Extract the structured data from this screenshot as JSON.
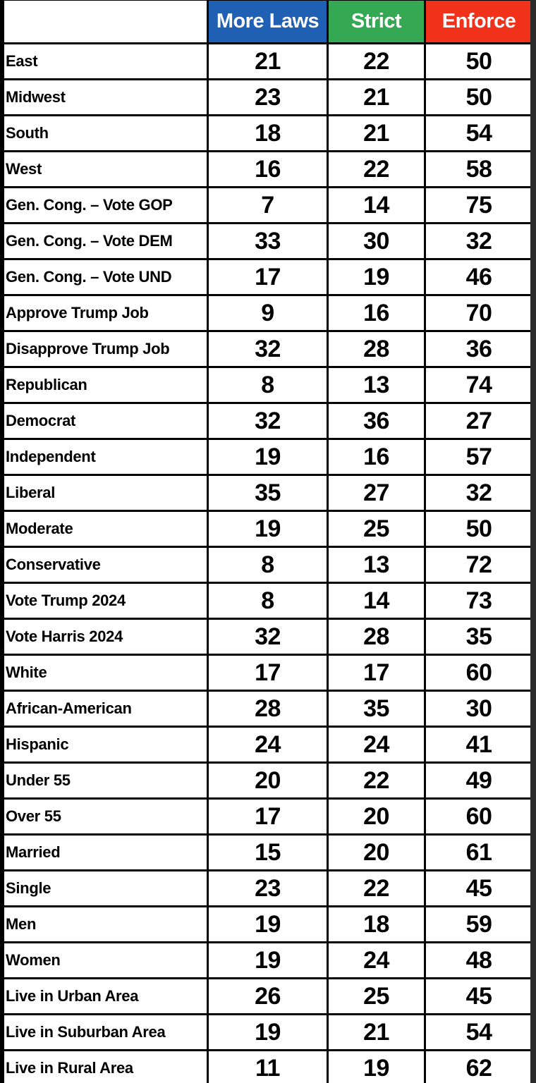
{
  "table": {
    "columns": [
      {
        "key": "label",
        "label": ""
      },
      {
        "key": "more_laws",
        "label": "More Laws",
        "color": "#1f5fb4"
      },
      {
        "key": "strict",
        "label": "Strict",
        "color": "#34a853"
      },
      {
        "key": "enforce",
        "label": "Enforce",
        "color": "#f2311a"
      }
    ],
    "rows": [
      {
        "label": "East",
        "more_laws": "21",
        "strict": "22",
        "enforce": "50"
      },
      {
        "label": "Midwest",
        "more_laws": "23",
        "strict": "21",
        "enforce": "50"
      },
      {
        "label": "South",
        "more_laws": "18",
        "strict": "21",
        "enforce": "54"
      },
      {
        "label": "West",
        "more_laws": "16",
        "strict": "22",
        "enforce": "58"
      },
      {
        "label": "Gen. Cong. – Vote GOP",
        "more_laws": "7",
        "strict": "14",
        "enforce": "75"
      },
      {
        "label": "Gen. Cong. – Vote DEM",
        "more_laws": "33",
        "strict": "30",
        "enforce": "32"
      },
      {
        "label": "Gen. Cong. – Vote UND",
        "more_laws": "17",
        "strict": "19",
        "enforce": "46"
      },
      {
        "label": "Approve Trump Job",
        "more_laws": "9",
        "strict": "16",
        "enforce": "70"
      },
      {
        "label": "Disapprove Trump Job",
        "more_laws": "32",
        "strict": "28",
        "enforce": "36"
      },
      {
        "label": "Republican",
        "more_laws": "8",
        "strict": "13",
        "enforce": "74"
      },
      {
        "label": "Democrat",
        "more_laws": "32",
        "strict": "36",
        "enforce": "27"
      },
      {
        "label": "Independent",
        "more_laws": "19",
        "strict": "16",
        "enforce": "57"
      },
      {
        "label": "Liberal",
        "more_laws": "35",
        "strict": "27",
        "enforce": "32"
      },
      {
        "label": "Moderate",
        "more_laws": "19",
        "strict": "25",
        "enforce": "50"
      },
      {
        "label": "Conservative",
        "more_laws": "8",
        "strict": "13",
        "enforce": "72"
      },
      {
        "label": "Vote Trump 2024",
        "more_laws": "8",
        "strict": "14",
        "enforce": "73"
      },
      {
        "label": "Vote Harris 2024",
        "more_laws": "32",
        "strict": "28",
        "enforce": "35"
      },
      {
        "label": "White",
        "more_laws": "17",
        "strict": "17",
        "enforce": "60"
      },
      {
        "label": "African-American",
        "more_laws": "28",
        "strict": "35",
        "enforce": "30"
      },
      {
        "label": "Hispanic",
        "more_laws": "24",
        "strict": "24",
        "enforce": "41"
      },
      {
        "label": "Under 55",
        "more_laws": "20",
        "strict": "22",
        "enforce": "49"
      },
      {
        "label": "Over 55",
        "more_laws": "17",
        "strict": "20",
        "enforce": "60"
      },
      {
        "label": "Married",
        "more_laws": "15",
        "strict": "20",
        "enforce": "61"
      },
      {
        "label": "Single",
        "more_laws": "23",
        "strict": "22",
        "enforce": "45"
      },
      {
        "label": "Men",
        "more_laws": "19",
        "strict": "18",
        "enforce": "59"
      },
      {
        "label": "Women",
        "more_laws": "19",
        "strict": "24",
        "enforce": "48"
      },
      {
        "label": "Live in Urban Area",
        "more_laws": "26",
        "strict": "25",
        "enforce": "45"
      },
      {
        "label": "Live in Suburban Area",
        "more_laws": "19",
        "strict": "21",
        "enforce": "54"
      },
      {
        "label": "Live in Rural Area",
        "more_laws": "11",
        "strict": "19",
        "enforce": "62"
      }
    ]
  },
  "chart_data": {
    "type": "table",
    "title": "",
    "columns": [
      "More Laws",
      "Strict",
      "Enforce"
    ],
    "column_colors": [
      "#1f5fb4",
      "#34a853",
      "#f2311a"
    ],
    "categories": [
      "East",
      "Midwest",
      "South",
      "West",
      "Gen. Cong. – Vote GOP",
      "Gen. Cong. – Vote DEM",
      "Gen. Cong. – Vote UND",
      "Approve Trump Job",
      "Disapprove Trump Job",
      "Republican",
      "Democrat",
      "Independent",
      "Liberal",
      "Moderate",
      "Conservative",
      "Vote Trump 2024",
      "Vote Harris 2024",
      "White",
      "African-American",
      "Hispanic",
      "Under 55",
      "Over 55",
      "Married",
      "Single",
      "Men",
      "Women",
      "Live in Urban Area",
      "Live in Suburban Area",
      "Live in Rural Area"
    ],
    "series": [
      {
        "name": "More Laws",
        "values": [
          21,
          23,
          18,
          16,
          7,
          33,
          17,
          9,
          32,
          8,
          32,
          19,
          35,
          19,
          8,
          8,
          32,
          17,
          28,
          24,
          20,
          17,
          15,
          23,
          19,
          19,
          26,
          19,
          11
        ]
      },
      {
        "name": "Strict",
        "values": [
          22,
          21,
          21,
          22,
          14,
          30,
          19,
          16,
          28,
          13,
          36,
          16,
          27,
          25,
          13,
          14,
          28,
          17,
          35,
          24,
          22,
          20,
          20,
          22,
          18,
          24,
          25,
          21,
          19
        ]
      },
      {
        "name": "Enforce",
        "values": [
          50,
          50,
          54,
          58,
          75,
          32,
          46,
          70,
          36,
          74,
          27,
          57,
          32,
          50,
          72,
          73,
          35,
          60,
          30,
          41,
          49,
          60,
          61,
          45,
          59,
          48,
          45,
          54,
          62
        ]
      }
    ]
  }
}
